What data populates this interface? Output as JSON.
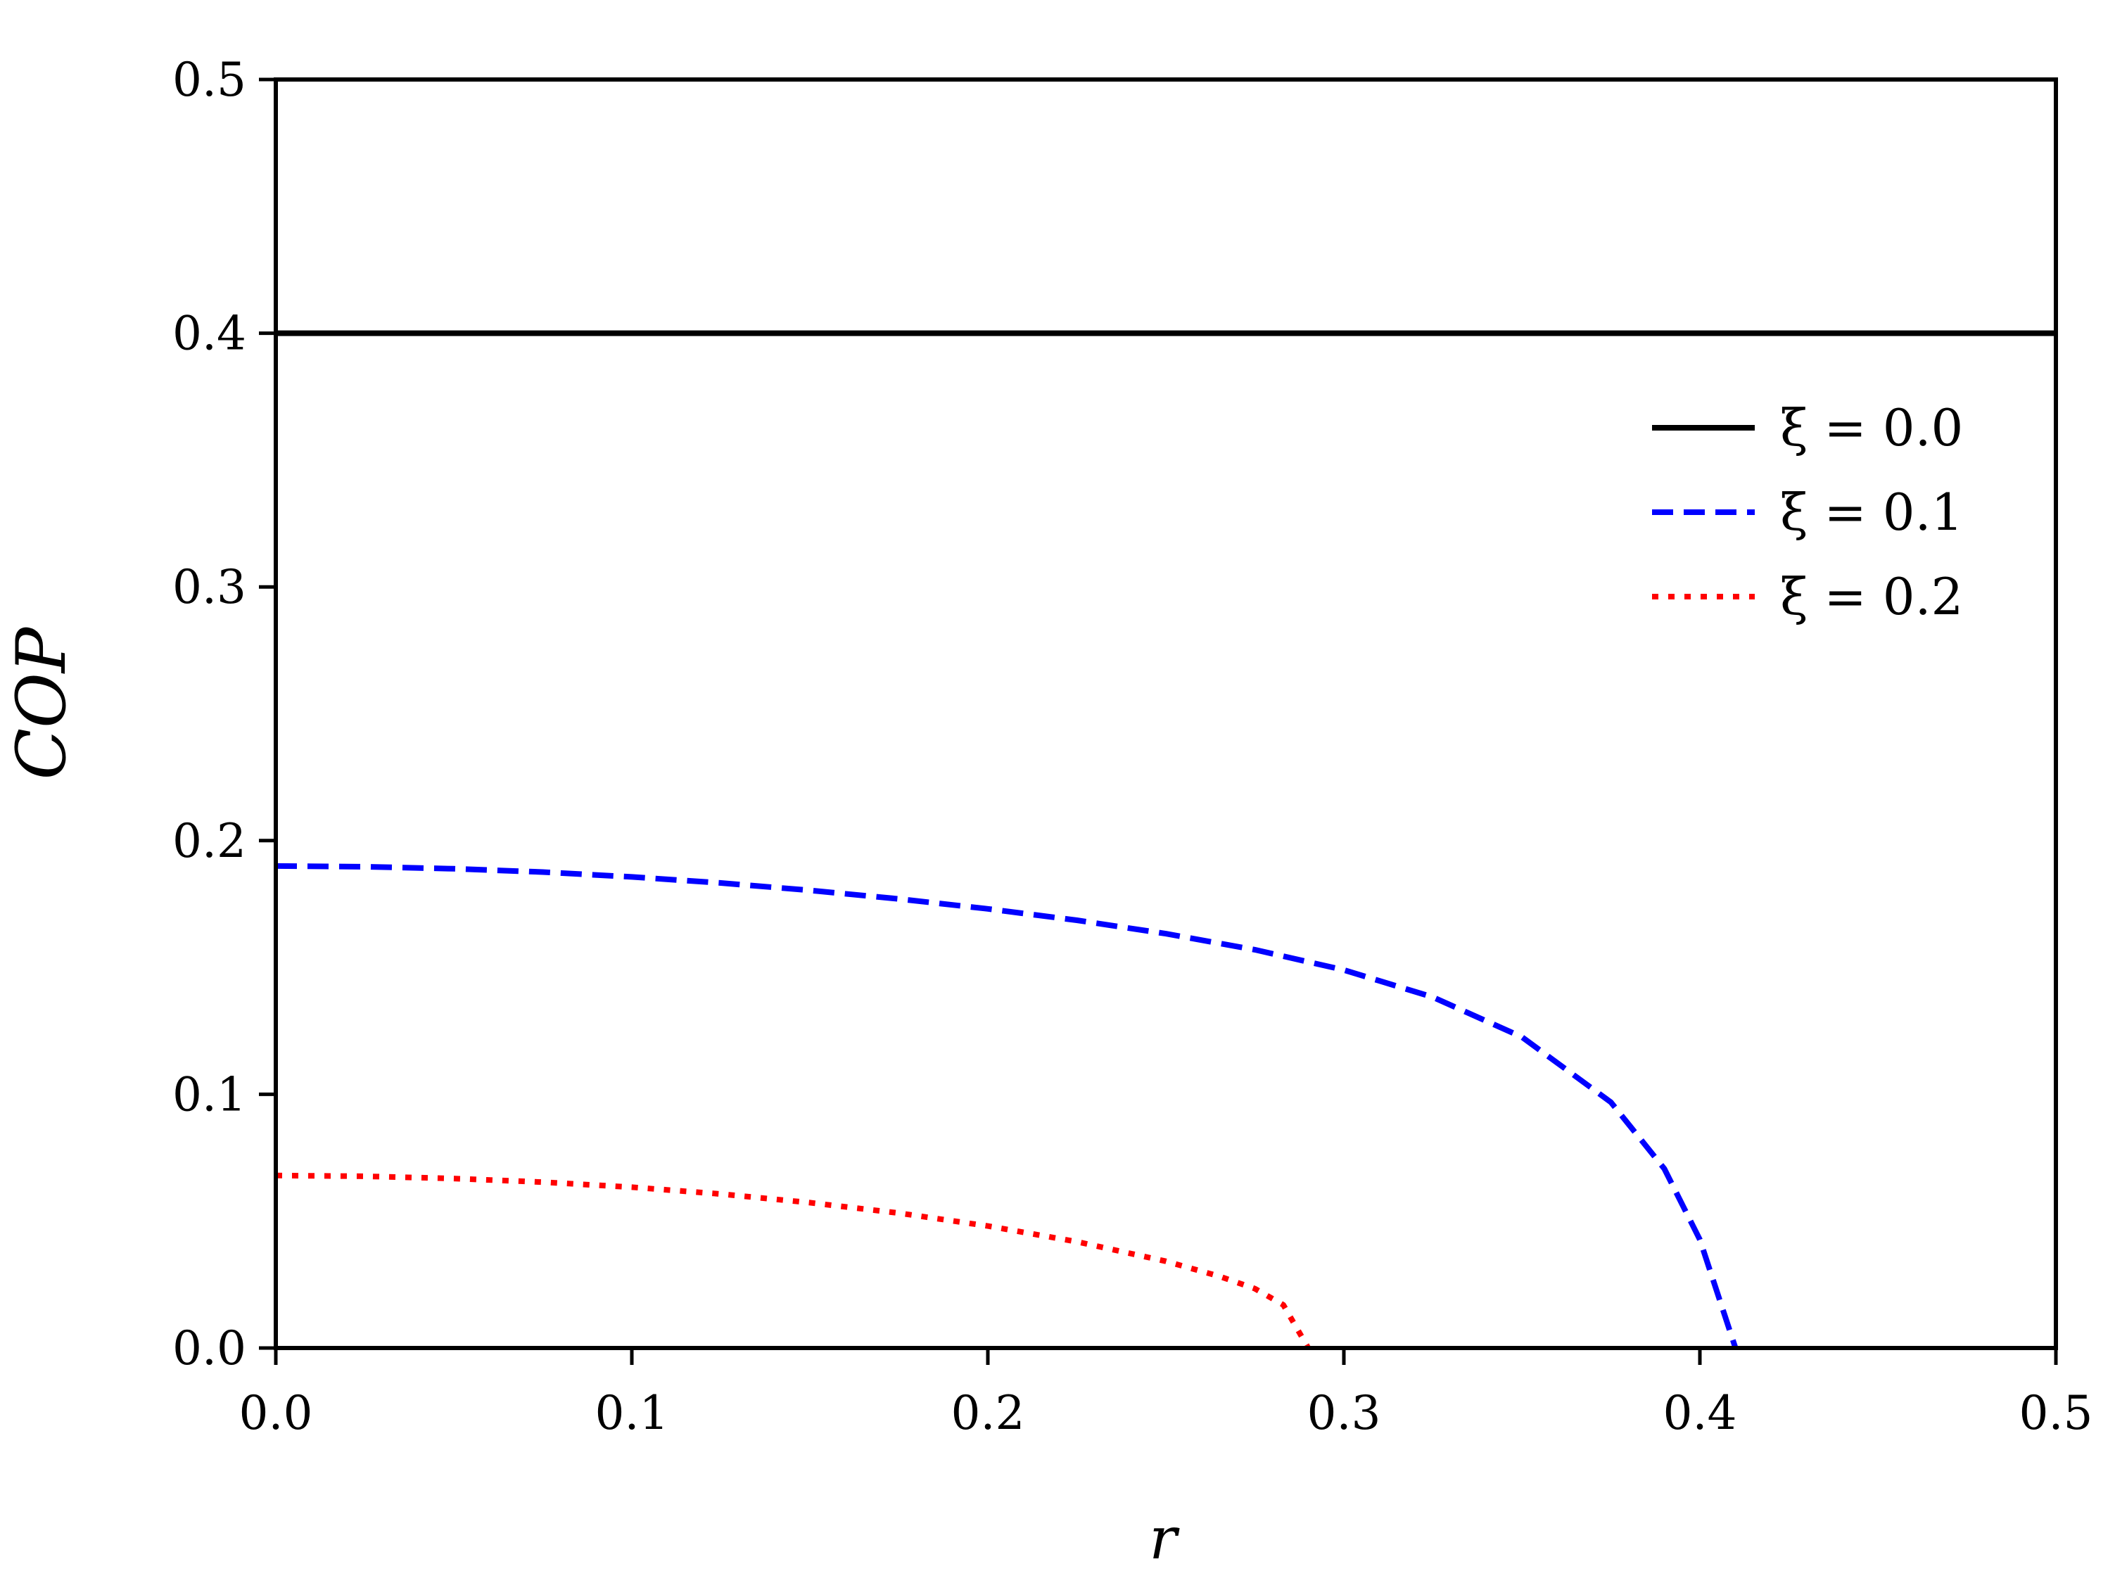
{
  "chart_data": {
    "type": "line",
    "xlabel": "r",
    "ylabel": "COP",
    "xlim": [
      0.0,
      0.5
    ],
    "ylim": [
      0.0,
      0.5
    ],
    "xticks": [
      "0.0",
      "0.1",
      "0.2",
      "0.3",
      "0.4",
      "0.5"
    ],
    "yticks": [
      "0.0",
      "0.1",
      "0.2",
      "0.3",
      "0.4",
      "0.5"
    ],
    "grid": false,
    "legend_position": "upper-right",
    "series": [
      {
        "name": "ξ = 0.0",
        "style": "solid",
        "color": "#000000",
        "x": [
          0.0,
          0.5
        ],
        "y": [
          0.4,
          0.4
        ]
      },
      {
        "name": "ξ = 0.1",
        "style": "dashed",
        "color": "#0000ff",
        "x": [
          0.0,
          0.025,
          0.05,
          0.075,
          0.1,
          0.125,
          0.15,
          0.175,
          0.2,
          0.225,
          0.25,
          0.275,
          0.3,
          0.325,
          0.35,
          0.375,
          0.39,
          0.4,
          0.41
        ],
        "y": [
          0.19,
          0.1897,
          0.1889,
          0.1876,
          0.1857,
          0.1833,
          0.1804,
          0.177,
          0.1731,
          0.1686,
          0.1633,
          0.157,
          0.149,
          0.1383,
          0.1226,
          0.0969,
          0.0707,
          0.0427,
          0.0
        ]
      },
      {
        "name": "ξ = 0.2",
        "style": "dotted",
        "color": "#ff0000",
        "x": [
          0.0,
          0.025,
          0.05,
          0.075,
          0.1,
          0.125,
          0.15,
          0.175,
          0.2,
          0.225,
          0.25,
          0.265,
          0.275,
          0.283,
          0.29
        ],
        "y": [
          0.068,
          0.0677,
          0.0668,
          0.0654,
          0.0634,
          0.0607,
          0.0573,
          0.0532,
          0.0481,
          0.0419,
          0.0342,
          0.0283,
          0.0234,
          0.017,
          0.0
        ]
      }
    ]
  }
}
